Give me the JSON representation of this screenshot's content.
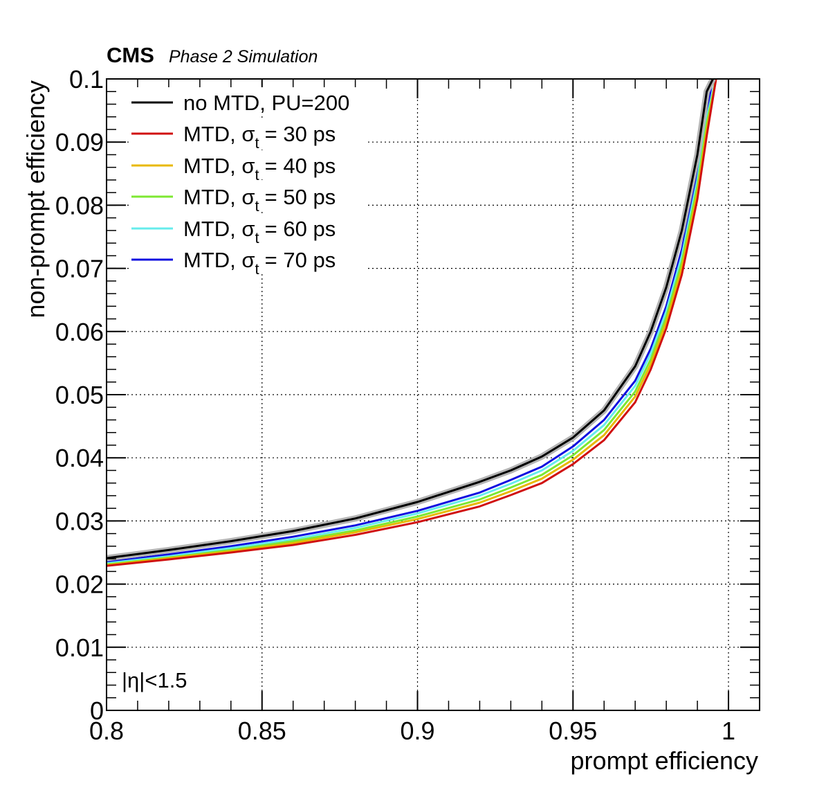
{
  "header": {
    "experiment": "CMS",
    "subtitle": "Phase 2 Simulation"
  },
  "annotation": "|η|<1.5",
  "chart_data": {
    "type": "line",
    "title": "",
    "xlabel": "prompt efficiency",
    "ylabel": "non-prompt efficiency",
    "xlim": [
      0.8,
      1.01
    ],
    "ylim": [
      0,
      0.1
    ],
    "x_ticks": [
      0.8,
      0.85,
      0.9,
      0.95,
      1.0
    ],
    "x_tick_labels": [
      "0.8",
      "0.85",
      "0.9",
      "0.95",
      "1"
    ],
    "y_ticks": [
      0,
      0.01,
      0.02,
      0.03,
      0.04,
      0.05,
      0.06,
      0.07,
      0.08,
      0.09,
      0.1
    ],
    "y_tick_labels": [
      "0",
      "0.01",
      "0.02",
      "0.03",
      "0.04",
      "0.05",
      "0.06",
      "0.07",
      "0.08",
      "0.09",
      "0.1"
    ],
    "grid": true,
    "legend_position": "top-left",
    "series": [
      {
        "name": "no MTD, PU=200",
        "color": "#000000",
        "band_color": "#b4b4b4",
        "x": [
          0.8,
          0.82,
          0.84,
          0.86,
          0.88,
          0.9,
          0.92,
          0.93,
          0.94,
          0.95,
          0.96,
          0.97,
          0.975,
          0.98,
          0.985,
          0.99,
          0.993,
          0.995
        ],
        "y": [
          0.0241,
          0.0254,
          0.0268,
          0.0284,
          0.0304,
          0.033,
          0.0362,
          0.038,
          0.0402,
          0.0432,
          0.0475,
          0.0545,
          0.06,
          0.067,
          0.076,
          0.088,
          0.098,
          0.1
        ]
      },
      {
        "name": "MTD, σ_t = 30 ps",
        "legend_main": "MTD, σ",
        "legend_sub": "t",
        "legend_rest": "= 30 ps",
        "color": "#d01010",
        "x": [
          0.8,
          0.82,
          0.84,
          0.86,
          0.88,
          0.9,
          0.92,
          0.93,
          0.94,
          0.95,
          0.96,
          0.97,
          0.975,
          0.98,
          0.985,
          0.99,
          0.993,
          0.996
        ],
        "y": [
          0.0229,
          0.0239,
          0.025,
          0.0262,
          0.0278,
          0.0298,
          0.0323,
          0.0341,
          0.036,
          0.039,
          0.0428,
          0.0488,
          0.054,
          0.0605,
          0.069,
          0.081,
          0.091,
          0.1
        ]
      },
      {
        "name": "MTD, σ_t = 40 ps",
        "legend_main": "MTD, σ",
        "legend_sub": "t",
        "legend_rest": "= 40 ps",
        "color": "#e8b800",
        "x": [
          0.8,
          0.82,
          0.84,
          0.86,
          0.88,
          0.9,
          0.92,
          0.93,
          0.94,
          0.95,
          0.96,
          0.97,
          0.975,
          0.98,
          0.985,
          0.99,
          0.993,
          0.996
        ],
        "y": [
          0.023,
          0.0241,
          0.0252,
          0.0265,
          0.0282,
          0.0303,
          0.0329,
          0.0347,
          0.0367,
          0.0397,
          0.0436,
          0.0497,
          0.0548,
          0.0615,
          0.07,
          0.082,
          0.092,
          0.1
        ]
      },
      {
        "name": "MTD, σ_t = 50 ps",
        "legend_main": "MTD, σ",
        "legend_sub": "t",
        "legend_rest": "= 50 ps",
        "color": "#7de832",
        "x": [
          0.8,
          0.82,
          0.84,
          0.86,
          0.88,
          0.9,
          0.92,
          0.93,
          0.94,
          0.95,
          0.96,
          0.97,
          0.975,
          0.98,
          0.985,
          0.99,
          0.993,
          0.996
        ],
        "y": [
          0.0231,
          0.0242,
          0.0254,
          0.0268,
          0.0285,
          0.0307,
          0.0334,
          0.0353,
          0.0373,
          0.0404,
          0.0444,
          0.0505,
          0.0556,
          0.0623,
          0.071,
          0.083,
          0.093,
          0.1
        ]
      },
      {
        "name": "MTD, σ_t = 60 ps",
        "legend_main": "MTD, σ",
        "legend_sub": "t",
        "legend_rest": "= 60 ps",
        "color": "#66ecec",
        "x": [
          0.8,
          0.82,
          0.84,
          0.86,
          0.88,
          0.9,
          0.92,
          0.93,
          0.94,
          0.95,
          0.96,
          0.97,
          0.975,
          0.98,
          0.985,
          0.99,
          0.993,
          0.996
        ],
        "y": [
          0.0233,
          0.0244,
          0.0257,
          0.0271,
          0.0289,
          0.0312,
          0.034,
          0.0359,
          0.038,
          0.0411,
          0.0452,
          0.0514,
          0.0565,
          0.0632,
          0.072,
          0.084,
          0.094,
          0.1
        ]
      },
      {
        "name": "MTD, σ_t = 70 ps",
        "legend_main": "MTD, σ",
        "legend_sub": "t",
        "legend_rest": "= 70 ps",
        "color": "#1010e0",
        "x": [
          0.8,
          0.82,
          0.84,
          0.86,
          0.88,
          0.9,
          0.92,
          0.93,
          0.94,
          0.95,
          0.96,
          0.97,
          0.975,
          0.98,
          0.985,
          0.99,
          0.993,
          0.995
        ],
        "y": [
          0.0235,
          0.0247,
          0.026,
          0.0275,
          0.0293,
          0.0316,
          0.0345,
          0.0365,
          0.0386,
          0.0418,
          0.046,
          0.0522,
          0.0573,
          0.064,
          0.073,
          0.085,
          0.095,
          0.1
        ]
      }
    ]
  }
}
